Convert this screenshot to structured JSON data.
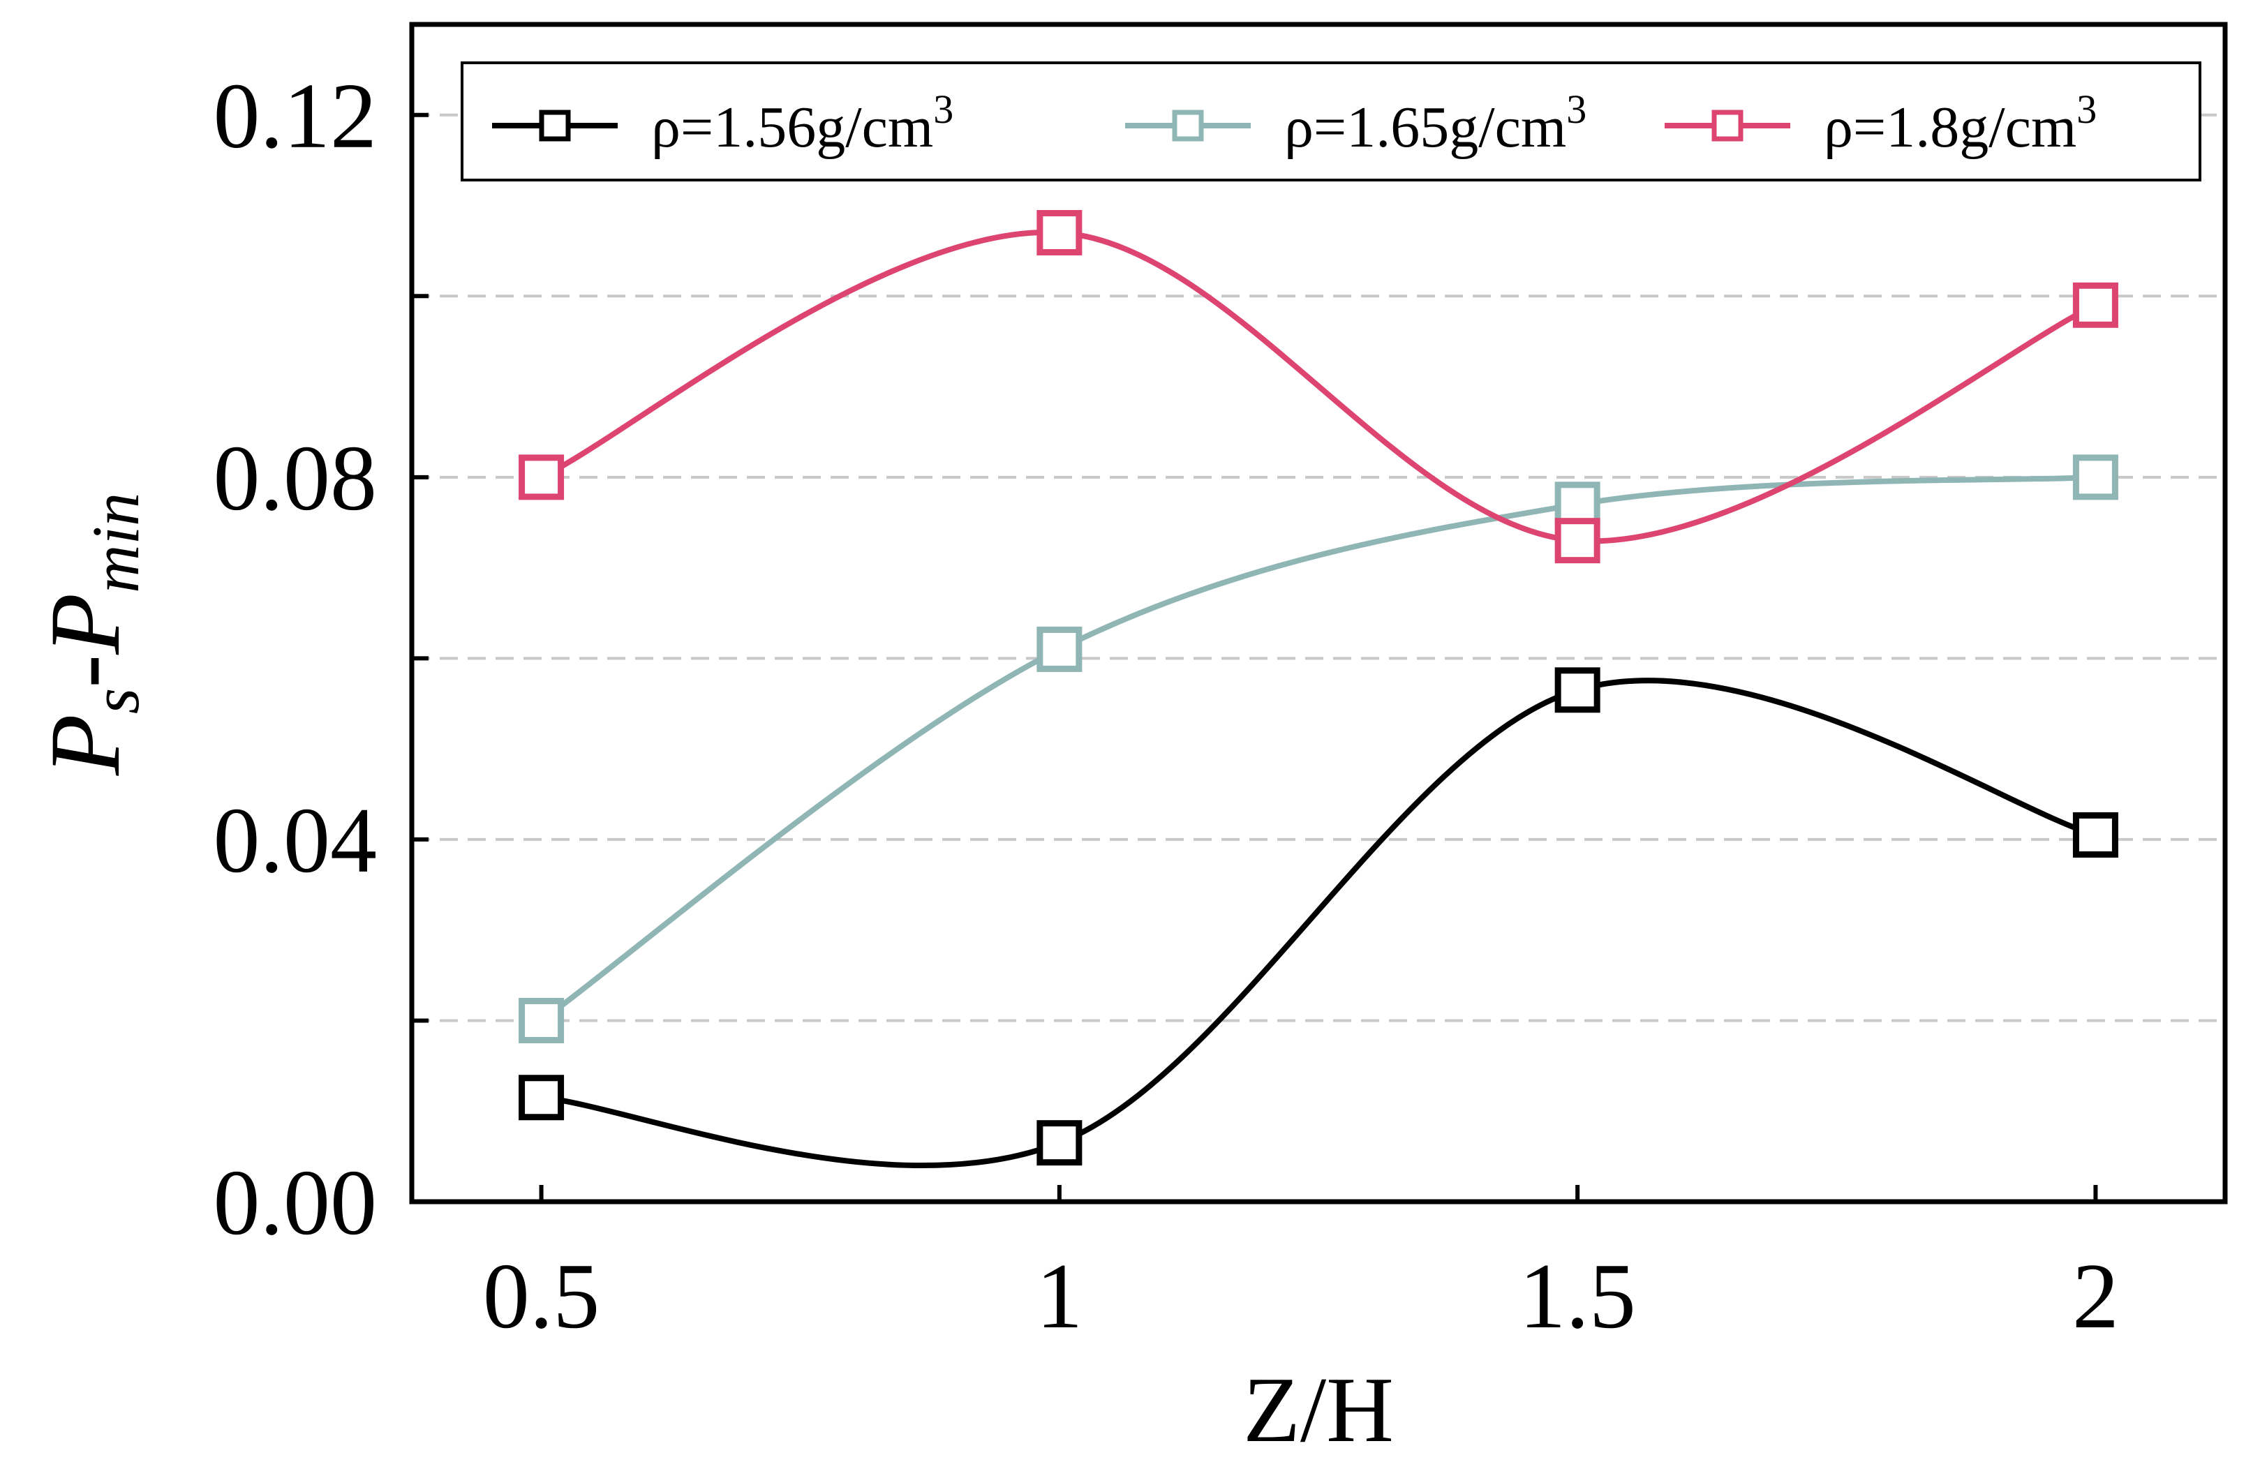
{
  "chart_data": {
    "type": "line",
    "smooth": true,
    "title": "",
    "xlabel": "Z/H",
    "ylabel": {
      "main": "P",
      "sub1": "s",
      "mid": "-P",
      "sub2": "min"
    },
    "x": [
      0.5,
      1,
      1.5,
      2
    ],
    "x_tick_labels": [
      "0.5",
      "1",
      "1.5",
      "2"
    ],
    "xlim": [
      0.375,
      2.125
    ],
    "ylim": [
      0,
      0.13
    ],
    "y_ticks": [
      0,
      0.02,
      0.04,
      0.06,
      0.08,
      0.1,
      0.12
    ],
    "y_tick_labels": [
      "0.00",
      "0.04",
      "0.08",
      "0.12"
    ],
    "y_tick_label_values": [
      0,
      0.04,
      0.08,
      0.12
    ],
    "grid": {
      "y": true,
      "style": "dashed"
    },
    "legend_position": "top",
    "series": [
      {
        "name": "ρ=1.56g/cm",
        "sup": "3",
        "color": "#000000",
        "values": [
          0.0115,
          0.0065,
          0.0565,
          0.0405
        ]
      },
      {
        "name": "ρ=1.65g/cm",
        "sup": "3",
        "color": "#8fb5b5",
        "values": [
          0.02,
          0.061,
          0.077,
          0.08
        ]
      },
      {
        "name": "ρ=1.8g/cm",
        "sup": "3",
        "color": "#dd4470",
        "values": [
          0.08,
          0.107,
          0.073,
          0.099
        ]
      }
    ]
  }
}
